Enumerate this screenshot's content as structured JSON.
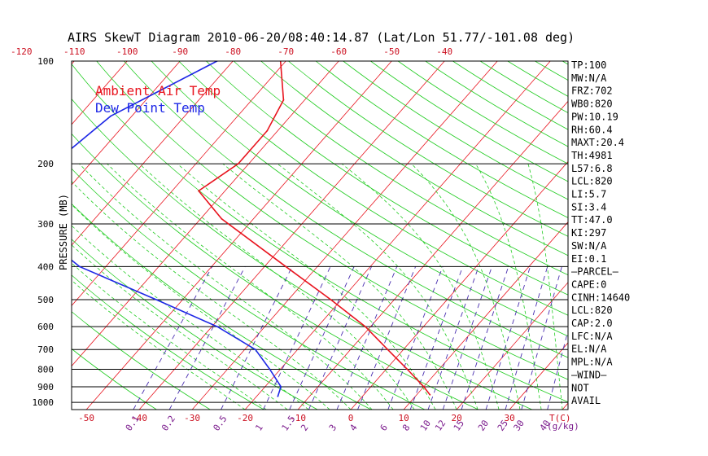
{
  "chart_data": {
    "type": "line",
    "title": "AIRS SkewT Diagram 2010-06-20/08:40:14.87 (Lat/Lon 51.77/-101.08 deg)",
    "ylabel": "PRESSURE (MB)",
    "xlabel": "T(C)",
    "mixing_ratio_unit": "(g/kg)",
    "y_scale": "log",
    "ylim": [
      1050,
      100
    ],
    "xlim_bottom": [
      -55,
      40
    ],
    "xlim_top": [
      -125,
      -35
    ],
    "grid": true,
    "pressure_ticks": [
      {
        "value": 100,
        "label": "100"
      },
      {
        "value": 200,
        "label": "200"
      },
      {
        "value": 300,
        "label": "300"
      },
      {
        "value": 400,
        "label": "400"
      },
      {
        "value": 500,
        "label": "500"
      },
      {
        "value": 600,
        "label": "600"
      },
      {
        "value": 700,
        "label": "700"
      },
      {
        "value": 800,
        "label": "800"
      },
      {
        "value": 900,
        "label": "900"
      },
      {
        "value": 1000,
        "label": "1000"
      }
    ],
    "bottom_temp_ticks": [
      {
        "value": -50,
        "label": "-50"
      },
      {
        "value": -40,
        "label": "-40"
      },
      {
        "value": -30,
        "label": "-30"
      },
      {
        "value": -20,
        "label": "-20"
      },
      {
        "value": -10,
        "label": "-10"
      },
      {
        "value": 0,
        "label": "0"
      },
      {
        "value": 10,
        "label": "10"
      },
      {
        "value": 20,
        "label": "20"
      },
      {
        "value": 30,
        "label": "30"
      }
    ],
    "top_temp_ticks": [
      {
        "value": -120,
        "label": "-120"
      },
      {
        "value": -110,
        "label": "-110"
      },
      {
        "value": -100,
        "label": "-100"
      },
      {
        "value": -90,
        "label": "-90"
      },
      {
        "value": -80,
        "label": "-80"
      },
      {
        "value": -70,
        "label": "-70"
      },
      {
        "value": -60,
        "label": "-60"
      },
      {
        "value": -50,
        "label": "-50"
      },
      {
        "value": -40,
        "label": "-40"
      }
    ],
    "mixing_ratio_labels": [
      "0.1",
      "0.2",
      "0.5",
      "1",
      "1.5",
      "2",
      "3",
      "4",
      "6",
      "8",
      "10",
      "12",
      "15",
      "20",
      "25",
      "30",
      "40"
    ],
    "series": [
      {
        "name": "Ambient Air Temp",
        "color": "#e8141e",
        "points": [
          {
            "p": 100,
            "t": -71
          },
          {
            "p": 130,
            "t": -64
          },
          {
            "p": 160,
            "t": -62
          },
          {
            "p": 200,
            "t": -62
          },
          {
            "p": 240,
            "t": -65
          },
          {
            "p": 290,
            "t": -56
          },
          {
            "p": 400,
            "t": -36
          },
          {
            "p": 500,
            "t": -22
          },
          {
            "p": 600,
            "t": -11
          },
          {
            "p": 700,
            "t": -3
          },
          {
            "p": 800,
            "t": 4
          },
          {
            "p": 900,
            "t": 10
          },
          {
            "p": 950,
            "t": 12.5
          }
        ]
      },
      {
        "name": "Dew Point Temp",
        "color": "#1e28e6",
        "points": [
          {
            "p": 100,
            "t": -83
          },
          {
            "p": 145,
            "t": -94
          },
          {
            "p": 200,
            "t": -97
          },
          {
            "p": 300,
            "t": -92
          },
          {
            "p": 400,
            "t": -75
          },
          {
            "p": 500,
            "t": -55
          },
          {
            "p": 600,
            "t": -39
          },
          {
            "p": 700,
            "t": -28
          },
          {
            "p": 800,
            "t": -22
          },
          {
            "p": 900,
            "t": -17
          },
          {
            "p": 960,
            "t": -16
          }
        ]
      }
    ]
  },
  "stats": [
    "TP:100",
    "MW:N/A",
    "FRZ:702",
    "WB0:820",
    "PW:10.19",
    "RH:60.4",
    "MAXT:20.4",
    "TH:4981",
    "L57:6.8",
    "LCL:820",
    "LI:5.7",
    "SI:3.4",
    "TT:47.0",
    "KI:297",
    "SW:N/A",
    "EI:0.1",
    "—PARCEL—",
    "CAPE:0",
    "CINH:14640",
    "LCL:820",
    "CAP:2.0",
    "LFC:N/A",
    "EL:N/A",
    "MPL:N/A",
    "—WIND—",
    "NOT",
    "AVAIL"
  ],
  "colors": {
    "isotherm": "#e8141e",
    "dry_adiabat": "#22cc22",
    "moist_adiabat": "#22cc22",
    "mixing_ratio": "#4a2fb0",
    "isobar": "#000000",
    "axis_text": "#cc1020",
    "mixing_text": "#7a1a8c"
  }
}
